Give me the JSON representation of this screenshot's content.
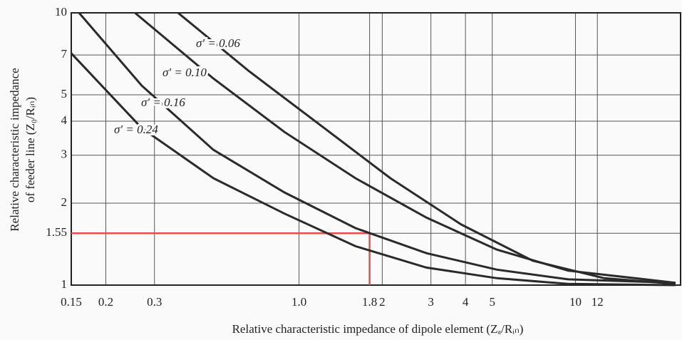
{
  "chart_data": {
    "type": "line",
    "xlabel": "Relative characteristic impedance of dipole element (Zₐ/Rᵢₙ)",
    "ylabel": [
      "Relative characteristic impedance",
      "of feeder line (Z₀/Rᵢₙ)"
    ],
    "log_x": true,
    "log_y": true,
    "grid": true,
    "xlim": [
      0.15,
      24
    ],
    "ylim": [
      1,
      10
    ],
    "xticks": [
      0.15,
      0.2,
      0.3,
      {
        "value": 1,
        "label": "1.0"
      },
      1.8,
      2,
      3,
      4,
      5,
      10,
      12
    ],
    "yticks": [
      1,
      1.55,
      2,
      3,
      4,
      5,
      7,
      10
    ],
    "reference": {
      "x": 1.8,
      "y": 1.55,
      "color": "#e05050"
    },
    "series": [
      {
        "name": "σ′ = 0.06",
        "color": "#2a2a2a",
        "x": [
          0.365,
          0.66,
          1.19,
          2.14,
          3.86,
          7.0,
          12.7,
          23
        ],
        "values": [
          10,
          6.1,
          3.88,
          2.47,
          1.67,
          1.23,
          1.06,
          1.01
        ]
      },
      {
        "name": "σ′ = 0.10",
        "color": "#2a2a2a",
        "x": [
          0.255,
          0.49,
          0.886,
          1.6,
          2.89,
          5.2,
          9.4,
          23
        ],
        "values": [
          10,
          5.74,
          3.65,
          2.47,
          1.77,
          1.35,
          1.13,
          1.02
        ]
      },
      {
        "name": "σ′ = 0.16",
        "color": "#2a2a2a",
        "x": [
          0.16,
          0.27,
          0.49,
          0.886,
          1.6,
          2.89,
          5.2,
          9.4,
          23
        ],
        "values": [
          10,
          5.4,
          3.14,
          2.19,
          1.62,
          1.31,
          1.14,
          1.05,
          1.02
        ]
      },
      {
        "name": "σ′ = 0.24",
        "color": "#2a2a2a",
        "x": [
          0.15,
          0.27,
          0.49,
          0.886,
          1.6,
          2.89,
          5.2,
          9.4,
          23
        ],
        "values": [
          7.1,
          3.77,
          2.47,
          1.83,
          1.39,
          1.16,
          1.06,
          1.01,
          1.0
        ]
      }
    ]
  }
}
